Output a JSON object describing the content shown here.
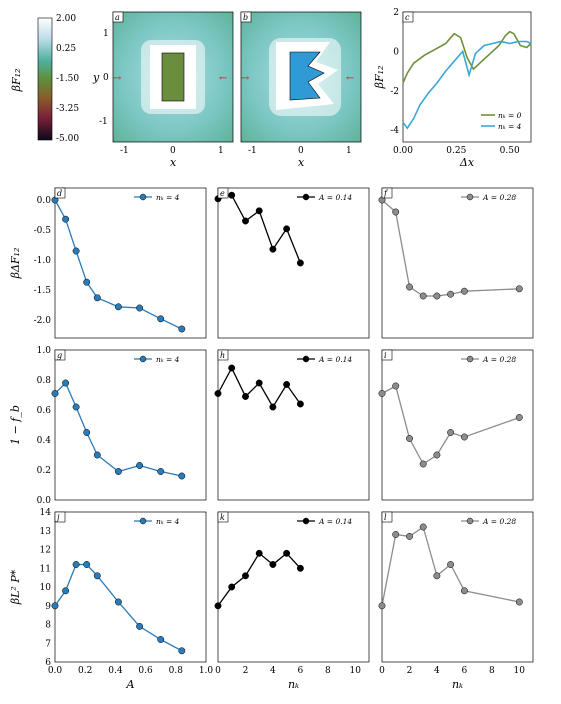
{
  "colorbar": {
    "label": "βF₁₂",
    "ticks": [
      "2.00",
      "0.25",
      "-1.50",
      "-3.25",
      "-5.00"
    ]
  },
  "maps": [
    {
      "letter": "a",
      "ylabel": "y",
      "xlabel": "x",
      "xticks": [
        "-1",
        "0",
        "1"
      ],
      "yticks": [
        "1",
        "0",
        "-1"
      ],
      "shape": "rectangle"
    },
    {
      "letter": "b",
      "xlabel": "x",
      "xticks": [
        "-1",
        "0",
        "1"
      ],
      "shape": "notched"
    }
  ],
  "chart_data": [
    {
      "panel": "c",
      "type": "line",
      "xlabel": "Δx",
      "ylabel": "βF₁₂",
      "xticks": [
        "0.00",
        "0.25",
        "0.50"
      ],
      "yticks": [
        "2",
        "0",
        "-2",
        "-4"
      ],
      "xlim": [
        0,
        0.6
      ],
      "ylim": [
        -4.6,
        2
      ],
      "series": [
        {
          "name": "n_k = 0",
          "color": "#6f8f3a",
          "x": [
            0,
            0.02,
            0.05,
            0.1,
            0.15,
            0.2,
            0.24,
            0.27,
            0.3,
            0.33,
            0.36,
            0.4,
            0.45,
            0.48,
            0.5,
            0.52,
            0.55,
            0.58,
            0.6
          ],
          "y": [
            -1.6,
            -1.1,
            -0.6,
            -0.2,
            0.1,
            0.4,
            0.9,
            0.7,
            -0.3,
            -0.9,
            -0.6,
            -0.2,
            0.3,
            0.8,
            1.0,
            0.9,
            0.3,
            0.2,
            0.4
          ]
        },
        {
          "name": "n_k = 4",
          "color": "#3aa6d8",
          "x": [
            0,
            0.02,
            0.05,
            0.08,
            0.12,
            0.16,
            0.2,
            0.24,
            0.28,
            0.31,
            0.34,
            0.38,
            0.42,
            0.46,
            0.5,
            0.54,
            0.58,
            0.6
          ],
          "y": [
            -3.6,
            -3.9,
            -3.4,
            -2.7,
            -2.1,
            -1.6,
            -1.0,
            -0.5,
            0.0,
            -1.2,
            -0.1,
            0.3,
            0.4,
            0.5,
            0.4,
            0.5,
            0.5,
            0.4
          ]
        }
      ],
      "legend": [
        "n_k = 0",
        "n_k = 4"
      ]
    },
    {
      "panel": "d",
      "type": "line",
      "color": "#2b7bb9",
      "legend": "n_k = 4",
      "ylabel": "βΔF₁₂",
      "ylim": [
        -2.3,
        0.2
      ],
      "xlim": [
        0,
        1.0
      ],
      "yticks": [
        "0.0",
        "-0.5",
        "-1.0",
        "-1.5",
        "-2.0"
      ],
      "x": [
        0,
        0.07,
        0.14,
        0.21,
        0.28,
        0.42,
        0.56,
        0.7,
        0.84
      ],
      "y": [
        0.0,
        -0.32,
        -0.85,
        -1.37,
        -1.63,
        -1.78,
        -1.8,
        -1.98,
        -2.15
      ]
    },
    {
      "panel": "e",
      "type": "line",
      "color": "#000000",
      "legend": "A = 0.14",
      "ylim": [
        -2.3,
        0.2
      ],
      "xlim": [
        0,
        11
      ],
      "x": [
        0,
        1,
        2,
        3,
        4,
        5,
        6
      ],
      "y": [
        0.02,
        0.08,
        -0.35,
        -0.18,
        -0.82,
        -0.48,
        -1.05
      ]
    },
    {
      "panel": "f",
      "type": "line",
      "color": "#8c8c8c",
      "legend": "A = 0.28",
      "ylim": [
        -2.3,
        0.2
      ],
      "xlim": [
        0,
        11
      ],
      "x": [
        0,
        1,
        2,
        3,
        4,
        5,
        6,
        10
      ],
      "y": [
        0.0,
        -0.2,
        -1.45,
        -1.6,
        -1.6,
        -1.57,
        -1.52,
        -1.48
      ]
    },
    {
      "panel": "g",
      "type": "line",
      "color": "#2b7bb9",
      "legend": "n_k = 4",
      "ylabel": "1 − f_b",
      "ylim": [
        0,
        1.0
      ],
      "xlim": [
        0,
        1.0
      ],
      "yticks": [
        "1.0",
        "0.8",
        "0.6",
        "0.4",
        "0.2",
        "0.0"
      ],
      "x": [
        0,
        0.07,
        0.14,
        0.21,
        0.28,
        0.42,
        0.56,
        0.7,
        0.84
      ],
      "y": [
        0.71,
        0.78,
        0.62,
        0.45,
        0.3,
        0.19,
        0.23,
        0.19,
        0.16
      ]
    },
    {
      "panel": "h",
      "type": "line",
      "color": "#000000",
      "legend": "A = 0.14",
      "ylim": [
        0,
        1.0
      ],
      "xlim": [
        0,
        11
      ],
      "x": [
        0,
        1,
        2,
        3,
        4,
        5,
        6
      ],
      "y": [
        0.71,
        0.88,
        0.69,
        0.78,
        0.62,
        0.77,
        0.64
      ]
    },
    {
      "panel": "i",
      "type": "line",
      "color": "#8c8c8c",
      "legend": "A = 0.28",
      "ylim": [
        0,
        1.0
      ],
      "xlim": [
        0,
        11
      ],
      "x": [
        0,
        1,
        2,
        3,
        4,
        5,
        6,
        10
      ],
      "y": [
        0.71,
        0.76,
        0.41,
        0.24,
        0.3,
        0.45,
        0.42,
        0.55
      ]
    },
    {
      "panel": "j",
      "type": "line",
      "color": "#2b7bb9",
      "legend": "n_k = 4",
      "ylabel": "βL² P*",
      "xlabel": "A",
      "ylim": [
        6,
        14
      ],
      "xlim": [
        0,
        1.0
      ],
      "yticks": [
        "14",
        "13",
        "12",
        "11",
        "10",
        "9",
        "8",
        "7",
        "6"
      ],
      "xticks": [
        "0.0",
        "0.2",
        "0.4",
        "0.6",
        "0.8",
        "1.0"
      ],
      "x": [
        0,
        0.07,
        0.14,
        0.21,
        0.28,
        0.42,
        0.56,
        0.7,
        0.84
      ],
      "y": [
        9.0,
        9.8,
        11.2,
        11.2,
        10.6,
        9.2,
        7.9,
        7.2,
        6.6
      ]
    },
    {
      "panel": "k",
      "type": "line",
      "color": "#000000",
      "legend": "A = 0.14",
      "xlabel": "n_k",
      "ylim": [
        6,
        14
      ],
      "xlim": [
        0,
        11
      ],
      "xticks": [
        "0",
        "2",
        "4",
        "6",
        "8",
        "10"
      ],
      "x": [
        0,
        1,
        2,
        3,
        4,
        5,
        6
      ],
      "y": [
        9.0,
        10.0,
        10.6,
        11.8,
        11.2,
        11.8,
        11.0
      ]
    },
    {
      "panel": "l",
      "type": "line",
      "color": "#8c8c8c",
      "legend": "A = 0.28",
      "xlabel": "n_k",
      "ylim": [
        6,
        14
      ],
      "xlim": [
        0,
        11
      ],
      "xticks": [
        "0",
        "2",
        "4",
        "6",
        "8",
        "10"
      ],
      "x": [
        0,
        1,
        2,
        3,
        4,
        5,
        6,
        10
      ],
      "y": [
        9.0,
        12.8,
        12.7,
        13.2,
        10.6,
        11.2,
        9.8,
        9.2
      ]
    }
  ]
}
